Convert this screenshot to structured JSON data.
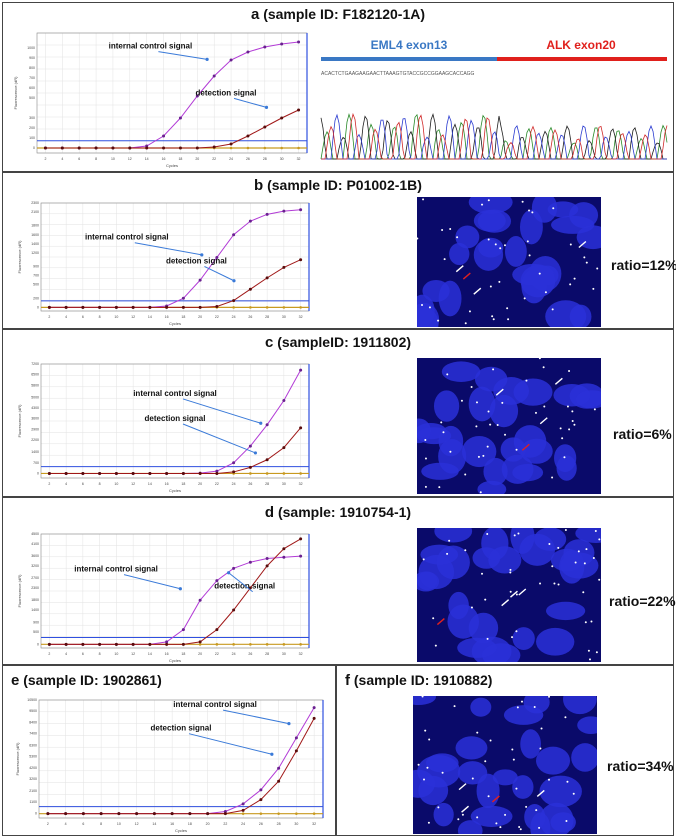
{
  "panels": {
    "a": {
      "letter": "a",
      "title": "(sample ID: F182120-1A)",
      "ic_label": "internal control signal",
      "det_label": "detection signal"
    },
    "b": {
      "letter": "b",
      "title": "(sample ID: P01002-1B)",
      "ic_label": "internal control signal",
      "det_label": "detection signal",
      "ratio": "ratio=12%"
    },
    "c": {
      "letter": "c",
      "title": "(sampleID: 1911802)",
      "ic_label": "internal control signal",
      "det_label": "detection signal",
      "ratio": "ratio=6%"
    },
    "d": {
      "letter": "d",
      "title": "(sample: 1910754-1)",
      "ic_label": "internal control signal",
      "det_label": "detection signal",
      "ratio": "ratio=22%"
    },
    "e": {
      "letter": "e",
      "title": "(sample ID: 1902861)",
      "ic_label": "internal control signal",
      "det_label": "detection signal"
    },
    "f": {
      "letter": "f",
      "title": "(sample ID: 1910882)",
      "ratio": "ratio=34%"
    }
  },
  "sequencing": {
    "left_label": "EML4 exon13",
    "right_label": "ALK exon20",
    "left_color": "#3a78c4",
    "right_color": "#e0201c",
    "bases": "ACACTCTGAAGAAGAACTTAAAGTGTACCGCCGGAAGCACCAGG"
  },
  "axis": {
    "xlabel": "Cycles",
    "ylabel": "Fluorescence (dR)"
  },
  "colors": {
    "internal_control": "#b23bd6",
    "detection": "#a01818",
    "baseline": "#c89a20",
    "threshold": "#3050e0",
    "fish_bg": "#0a0a6a"
  },
  "chart_data": [
    {
      "type": "line",
      "panel": "a",
      "x": [
        2,
        4,
        6,
        8,
        10,
        12,
        14,
        16,
        18,
        20,
        22,
        24,
        26,
        28,
        30,
        32
      ],
      "series": [
        {
          "name": "internal control signal",
          "values": [
            0,
            0,
            0,
            0,
            0,
            0,
            20,
            120,
            300,
            520,
            720,
            880,
            960,
            1010,
            1040,
            1060
          ]
        },
        {
          "name": "detection signal",
          "values": [
            0,
            0,
            0,
            0,
            0,
            0,
            0,
            0,
            0,
            0,
            10,
            40,
            120,
            210,
            300,
            380
          ]
        }
      ],
      "xlim": [
        1,
        33
      ],
      "ylim": [
        -50,
        1150
      ]
    },
    {
      "type": "line",
      "panel": "b",
      "x": [
        2,
        4,
        6,
        8,
        10,
        12,
        14,
        16,
        18,
        20,
        22,
        24,
        26,
        28,
        30,
        32
      ],
      "series": [
        {
          "name": "internal control signal",
          "values": [
            0,
            0,
            0,
            0,
            0,
            0,
            0,
            30,
            200,
            600,
            1100,
            1600,
            1900,
            2050,
            2120,
            2150
          ]
        },
        {
          "name": "detection signal",
          "values": [
            0,
            0,
            0,
            0,
            0,
            0,
            0,
            0,
            0,
            0,
            20,
            150,
            400,
            650,
            880,
            1050
          ]
        }
      ],
      "xlim": [
        1,
        33
      ],
      "ylim": [
        -80,
        2300
      ]
    },
    {
      "type": "line",
      "panel": "c",
      "x": [
        2,
        4,
        6,
        8,
        10,
        12,
        14,
        16,
        18,
        20,
        22,
        24,
        26,
        28,
        30,
        32
      ],
      "series": [
        {
          "name": "internal control signal",
          "values": [
            0,
            0,
            0,
            0,
            0,
            0,
            0,
            0,
            0,
            20,
            150,
            700,
            1800,
            3200,
            4800,
            6800
          ]
        },
        {
          "name": "detection signal",
          "values": [
            0,
            0,
            0,
            0,
            0,
            0,
            0,
            0,
            0,
            0,
            0,
            100,
            400,
            900,
            1700,
            3000
          ]
        }
      ],
      "xlim": [
        1,
        33
      ],
      "ylim": [
        -300,
        7200
      ]
    },
    {
      "type": "line",
      "panel": "d",
      "x": [
        2,
        4,
        6,
        8,
        10,
        12,
        14,
        16,
        18,
        20,
        22,
        24,
        26,
        28,
        30,
        32
      ],
      "series": [
        {
          "name": "internal control signal",
          "values": [
            0,
            0,
            0,
            0,
            0,
            0,
            0,
            100,
            600,
            1800,
            2600,
            3100,
            3350,
            3500,
            3550,
            3600
          ]
        },
        {
          "name": "detection signal",
          "values": [
            0,
            0,
            0,
            0,
            0,
            0,
            0,
            0,
            0,
            100,
            600,
            1400,
            2300,
            3200,
            3900,
            4300
          ]
        }
      ],
      "xlim": [
        1,
        33
      ],
      "ylim": [
        -150,
        4500
      ]
    },
    {
      "type": "line",
      "panel": "e",
      "x": [
        2,
        4,
        6,
        8,
        10,
        12,
        14,
        16,
        18,
        20,
        22,
        24,
        26,
        28,
        30,
        32
      ],
      "series": [
        {
          "name": "internal control signal",
          "values": [
            0,
            0,
            0,
            0,
            0,
            0,
            0,
            0,
            0,
            0,
            200,
            900,
            2200,
            4200,
            7000,
            9800
          ]
        },
        {
          "name": "detection signal",
          "values": [
            0,
            0,
            0,
            0,
            0,
            0,
            0,
            0,
            0,
            0,
            0,
            300,
            1300,
            3000,
            5800,
            8800
          ]
        }
      ],
      "xlim": [
        1,
        33
      ],
      "ylim": [
        -400,
        10500
      ]
    }
  ]
}
